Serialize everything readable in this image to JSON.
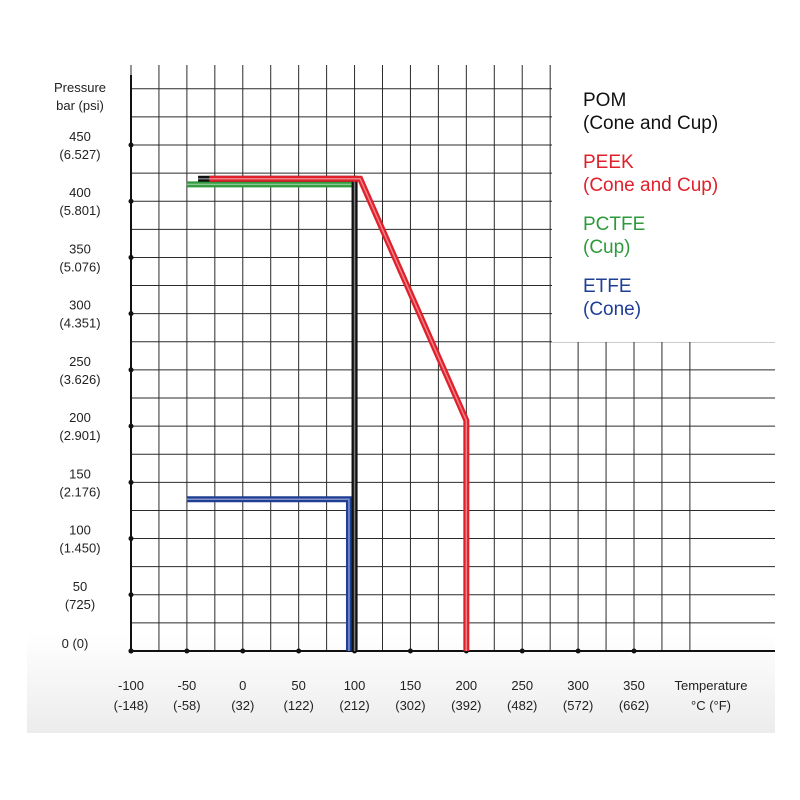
{
  "chart_data": {
    "type": "line",
    "ylabel": [
      "Pressure",
      "bar (psi)"
    ],
    "xlabel": [
      "Temperature",
      "°C (°F)"
    ],
    "xlim": [
      -100,
      350
    ],
    "ylim": [
      0,
      450
    ],
    "grid": true,
    "legend_position": "top-right",
    "y_ticks": [
      {
        "value": 450,
        "label": "450",
        "sub": "(6.527)"
      },
      {
        "value": 400,
        "label": "400",
        "sub": "(5.801)"
      },
      {
        "value": 350,
        "label": "350",
        "sub": "(5.076)"
      },
      {
        "value": 300,
        "label": "300",
        "sub": "(4.351)"
      },
      {
        "value": 250,
        "label": "250",
        "sub": "(3.626)"
      },
      {
        "value": 200,
        "label": "200",
        "sub": "(2.901)"
      },
      {
        "value": 150,
        "label": "150",
        "sub": "(2.176)"
      },
      {
        "value": 100,
        "label": "100",
        "sub": "(1.450)"
      },
      {
        "value": 50,
        "label": "50",
        "sub": "(725)"
      },
      {
        "value": 0,
        "label": "0 (0)",
        "sub": ""
      }
    ],
    "x_ticks": [
      {
        "value": -100,
        "label": "-100",
        "sub": "(-148)"
      },
      {
        "value": -50,
        "label": "-50",
        "sub": "(-58)"
      },
      {
        "value": 0,
        "label": "0",
        "sub": "(32)"
      },
      {
        "value": 50,
        "label": "50",
        "sub": "(122)"
      },
      {
        "value": 100,
        "label": "100",
        "sub": "(212)"
      },
      {
        "value": 150,
        "label": "150",
        "sub": "(302)"
      },
      {
        "value": 200,
        "label": "200",
        "sub": "(392)"
      },
      {
        "value": 250,
        "label": "250",
        "sub": "(482)"
      },
      {
        "value": 300,
        "label": "300",
        "sub": "(572)"
      },
      {
        "value": 350,
        "label": "350",
        "sub": "(662)"
      }
    ],
    "series": [
      {
        "name": [
          "POM",
          "(Cone and Cup)"
        ],
        "color": "#111111",
        "points": [
          [
            -40,
            420
          ],
          [
            100,
            420
          ],
          [
            100,
            0
          ]
        ]
      },
      {
        "name": [
          "PEEK",
          "(Cone and Cup)"
        ],
        "color": "#e0202a",
        "points": [
          [
            -30,
            420
          ],
          [
            105,
            420
          ],
          [
            200,
            205
          ],
          [
            200,
            0
          ]
        ]
      },
      {
        "name": [
          "PCTFE",
          "(Cup)"
        ],
        "color": "#2f9a3c",
        "points": [
          [
            -50,
            415
          ],
          [
            100,
            415
          ],
          [
            100,
            0
          ]
        ]
      },
      {
        "name": [
          "ETFE",
          "(Cone)"
        ],
        "color": "#1f3f96",
        "points": [
          [
            -50,
            135
          ],
          [
            95,
            135
          ],
          [
            95,
            0
          ]
        ]
      }
    ]
  }
}
